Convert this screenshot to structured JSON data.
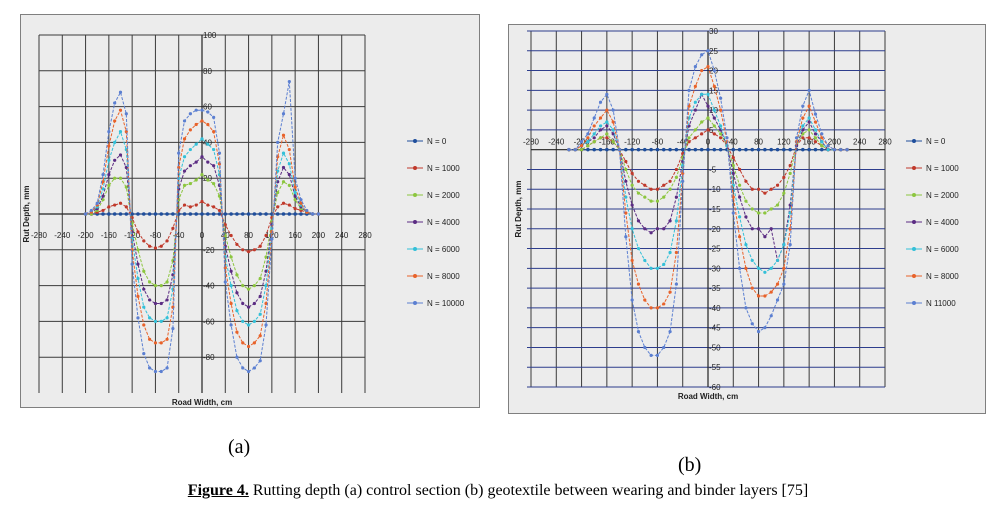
{
  "caption": {
    "figure_label": "Figure 4.",
    "text": " Rutting depth (a) control section (b) geotextile between wearing and binder layers [75]"
  },
  "panel_labels": [
    "(a)",
    "(b)"
  ],
  "chart_data": [
    {
      "type": "line",
      "xlabel": "Road Width, cm",
      "ylabel": "Rut Depth, mm",
      "xlim": [
        -280,
        280
      ],
      "ylim": [
        -100,
        100
      ],
      "xticks": [
        -280,
        -240,
        -200,
        -160,
        -120,
        -80,
        -40,
        0,
        40,
        80,
        120,
        160,
        200,
        240,
        280
      ],
      "yticks": [
        100,
        80,
        60,
        40,
        20,
        -20,
        -40,
        -60,
        -80
      ],
      "ytick_labels": [
        "100",
        "80",
        "60",
        "40",
        "20",
        "-20",
        "-40",
        "-60",
        "-80"
      ],
      "grid": true,
      "legend_position": "right",
      "x": [
        -200,
        -190,
        -180,
        -170,
        -160,
        -150,
        -140,
        -130,
        -120,
        -110,
        -100,
        -90,
        -80,
        -70,
        -60,
        -50,
        -40,
        -30,
        -20,
        -10,
        0,
        10,
        20,
        30,
        40,
        50,
        60,
        70,
        80,
        90,
        100,
        110,
        120,
        130,
        140,
        150,
        160,
        170,
        180,
        190,
        200
      ],
      "series": [
        {
          "name": "N = 0",
          "color": "#1f4e9c",
          "values": [
            0,
            0,
            0,
            0,
            0,
            0,
            0,
            0,
            0,
            0,
            0,
            0,
            0,
            0,
            0,
            0,
            0,
            0,
            0,
            0,
            0,
            0,
            0,
            0,
            0,
            0,
            0,
            0,
            0,
            0,
            0,
            0,
            0,
            0,
            0,
            0,
            0,
            0,
            0,
            0,
            0
          ]
        },
        {
          "name": "N = 1000",
          "color": "#c0392b",
          "values": [
            0,
            0,
            1,
            2,
            4,
            5,
            6,
            4,
            -2,
            -10,
            -15,
            -18,
            -19,
            -18,
            -15,
            -8,
            2,
            5,
            4,
            5,
            7,
            5,
            4,
            2,
            -6,
            -12,
            -17,
            -20,
            -21,
            -20,
            -18,
            -12,
            -2,
            4,
            6,
            5,
            3,
            2,
            1,
            0,
            0
          ]
        },
        {
          "name": "N = 2000",
          "color": "#8cc63f",
          "values": [
            0,
            0,
            2,
            8,
            16,
            20,
            20,
            15,
            -5,
            -20,
            -32,
            -38,
            -40,
            -40,
            -38,
            -26,
            8,
            16,
            17,
            19,
            22,
            19,
            17,
            10,
            -12,
            -24,
            -34,
            -40,
            -42,
            -40,
            -36,
            -24,
            -4,
            12,
            18,
            16,
            8,
            3,
            1,
            0,
            0
          ]
        },
        {
          "name": "N = 4000",
          "color": "#5b2c83",
          "values": [
            0,
            1,
            3,
            10,
            22,
            30,
            33,
            26,
            -10,
            -28,
            -42,
            -48,
            -50,
            -50,
            -48,
            -34,
            14,
            24,
            27,
            29,
            32,
            29,
            27,
            16,
            -18,
            -32,
            -44,
            -50,
            -52,
            -50,
            -46,
            -32,
            -6,
            18,
            26,
            22,
            10,
            4,
            1,
            0,
            0
          ]
        },
        {
          "name": "N = 6000",
          "color": "#33c0d8",
          "values": [
            0,
            1,
            4,
            14,
            30,
            40,
            46,
            36,
            -14,
            -36,
            -52,
            -58,
            -60,
            -60,
            -58,
            -42,
            20,
            32,
            36,
            39,
            42,
            39,
            36,
            22,
            -24,
            -40,
            -54,
            -60,
            -62,
            -60,
            -56,
            -40,
            -8,
            24,
            34,
            28,
            12,
            5,
            1,
            0,
            0
          ]
        },
        {
          "name": "N = 8000",
          "color": "#e8622a",
          "values": [
            0,
            1,
            5,
            18,
            38,
            52,
            58,
            46,
            -20,
            -46,
            -62,
            -70,
            -72,
            -72,
            -70,
            -52,
            26,
            42,
            47,
            50,
            52,
            50,
            46,
            28,
            -30,
            -50,
            -66,
            -72,
            -74,
            -72,
            -68,
            -50,
            -10,
            32,
            44,
            36,
            15,
            6,
            1,
            0,
            0
          ]
        },
        {
          "name": "N = 10000",
          "color": "#5b7fd1",
          "values": [
            0,
            2,
            6,
            22,
            46,
            62,
            68,
            56,
            -28,
            -58,
            -78,
            -86,
            -88,
            -88,
            -86,
            -64,
            34,
            52,
            56,
            58,
            58,
            57,
            54,
            34,
            -38,
            -62,
            -80,
            -86,
            -88,
            -86,
            -82,
            -62,
            -14,
            40,
            56,
            74,
            20,
            8,
            2,
            0,
            0
          ]
        }
      ]
    },
    {
      "type": "line",
      "xlabel": "Road Width, cm",
      "ylabel": "Rut Depth, mm",
      "xlim": [
        -280,
        280
      ],
      "ylim": [
        -60,
        30
      ],
      "xticks": [
        -280,
        -240,
        -200,
        -160,
        -120,
        -80,
        -40,
        0,
        40,
        80,
        120,
        160,
        200,
        240,
        280
      ],
      "yticks": [
        30,
        25,
        20,
        15,
        10,
        5,
        -5,
        -10,
        -15,
        -20,
        -25,
        -30,
        -35,
        -40,
        -45,
        -50,
        -55,
        -60
      ],
      "ytick_labels": [
        "30",
        "25",
        "20",
        "15",
        "10",
        "5",
        "-5",
        "-10",
        "-15",
        "-20",
        "-25",
        "-30",
        "-35",
        "-40",
        "-45",
        "-50",
        "-55",
        "-60"
      ],
      "grid": true,
      "legend_position": "right",
      "x": [
        -220,
        -210,
        -200,
        -190,
        -180,
        -170,
        -160,
        -150,
        -140,
        -130,
        -120,
        -110,
        -100,
        -90,
        -80,
        -70,
        -60,
        -50,
        -40,
        -30,
        -20,
        -10,
        0,
        10,
        20,
        30,
        40,
        50,
        60,
        70,
        80,
        90,
        100,
        110,
        120,
        130,
        140,
        150,
        160,
        170,
        180,
        190,
        200,
        210,
        220
      ],
      "series": [
        {
          "name": "N = 0",
          "color": "#1f4e9c",
          "values": [
            0,
            0,
            0,
            0,
            0,
            0,
            0,
            0,
            0,
            0,
            0,
            0,
            0,
            0,
            0,
            0,
            0,
            0,
            0,
            0,
            0,
            0,
            0,
            0,
            0,
            0,
            0,
            0,
            0,
            0,
            0,
            0,
            0,
            0,
            0,
            0,
            0,
            0,
            0,
            0,
            0,
            0,
            0,
            0,
            0
          ]
        },
        {
          "name": "N = 1000",
          "color": "#c0392b",
          "values": [
            0,
            0,
            0,
            1,
            2,
            3,
            3,
            2,
            0,
            -3,
            -6,
            -8,
            -9,
            -10,
            -10,
            -9,
            -8,
            -5,
            -1,
            2,
            3,
            4,
            5,
            4,
            3,
            1,
            -2,
            -5,
            -8,
            -10,
            -10,
            -11,
            -10,
            -9,
            -7,
            -4,
            1,
            3,
            3,
            2,
            1,
            0,
            0,
            0,
            0
          ]
        },
        {
          "name": "N = 2000",
          "color": "#8cc63f",
          "values": [
            0,
            0,
            0,
            1,
            2,
            3,
            4,
            2,
            0,
            -5,
            -9,
            -11,
            -12,
            -13,
            -13,
            -12,
            -10,
            -7,
            -2,
            3,
            5,
            7,
            8,
            6,
            4,
            1,
            -4,
            -9,
            -13,
            -15,
            -16,
            -16,
            -15,
            -14,
            -11,
            -6,
            1,
            4,
            5,
            3,
            1,
            0,
            0,
            0,
            0
          ]
        },
        {
          "name": "N = 4000",
          "color": "#5b2c83",
          "values": [
            0,
            0,
            1,
            2,
            3,
            5,
            6,
            4,
            0,
            -8,
            -14,
            -18,
            -20,
            -21,
            -20,
            -20,
            -18,
            -12,
            -3,
            6,
            10,
            14,
            11,
            8,
            5,
            1,
            -6,
            -12,
            -17,
            -20,
            -20,
            -22,
            -20,
            -28,
            -24,
            -14,
            1,
            5,
            7,
            4,
            2,
            0,
            0,
            0,
            0
          ]
        },
        {
          "name": "N = 6000",
          "color": "#33c0d8",
          "values": [
            0,
            0,
            1,
            2,
            4,
            6,
            7,
            5,
            0,
            -12,
            -20,
            -25,
            -28,
            -30,
            -30,
            -29,
            -26,
            -18,
            -4,
            8,
            12,
            14,
            14,
            10,
            6,
            1,
            -9,
            -17,
            -24,
            -28,
            -30,
            -31,
            -30,
            -28,
            -24,
            -16,
            2,
            6,
            8,
            5,
            2,
            0,
            0,
            0,
            0
          ]
        },
        {
          "name": "N = 8000",
          "color": "#e8622a",
          "values": [
            0,
            0,
            1,
            3,
            6,
            8,
            10,
            7,
            0,
            -16,
            -28,
            -34,
            -38,
            -40,
            -40,
            -39,
            -36,
            -26,
            -6,
            11,
            16,
            20,
            21,
            16,
            10,
            2,
            -12,
            -22,
            -30,
            -35,
            -37,
            -37,
            -36,
            -34,
            -30,
            -20,
            2,
            8,
            11,
            7,
            3,
            1,
            0,
            0,
            0
          ]
        },
        {
          "name": "N  11000",
          "color": "#5b7fd1",
          "values": [
            0,
            0,
            2,
            4,
            8,
            12,
            14,
            10,
            0,
            -22,
            -38,
            -46,
            -50,
            -52,
            -52,
            -50,
            -46,
            -34,
            -8,
            15,
            21,
            24,
            25,
            20,
            13,
            3,
            -16,
            -30,
            -40,
            -44,
            -46,
            -45,
            -42,
            -38,
            -34,
            -24,
            3,
            11,
            15,
            9,
            4,
            1,
            0,
            0,
            0
          ]
        }
      ]
    }
  ]
}
